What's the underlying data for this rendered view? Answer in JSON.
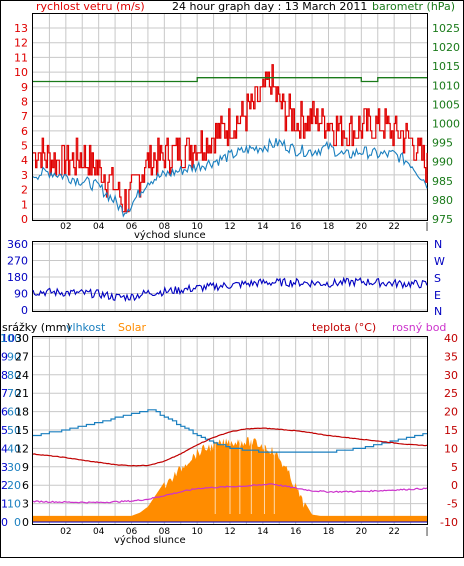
{
  "panel1": {
    "title": "24 hour graph day : 13 March 2011",
    "left_label": "rychlost vetru (m/s)",
    "right_label": "barometr (hPa)",
    "sunrise_label": "východ slunce"
  },
  "panel2": {
    "compass": [
      "N",
      "W",
      "S",
      "E",
      "N"
    ]
  },
  "panel3": {
    "labels": {
      "rain": "srážky (mm)",
      "humidity": "vlhkost",
      "solar": "Solar",
      "temperature": "teplota (°C)",
      "dew": "rosný bod"
    },
    "sunrise_label": "východ slunce"
  },
  "colors": {
    "wind": "#e00000",
    "gust_line": "#1a7fbf",
    "barometer": "#1a7a1a",
    "direction": "#0000c0",
    "humidity": "#1a7fbf",
    "solar": "#ff8c00",
    "temperature": "#c00000",
    "dew": "#cc33cc",
    "rain": "#0000cc",
    "frame": "#000000",
    "grid": "#c8c8c8"
  },
  "chart_data": [
    {
      "type": "line",
      "title": "24 hour graph day : 13 March 2011",
      "x_ticks": [
        "02",
        "04",
        "06",
        "08",
        "10",
        "12",
        "14",
        "16",
        "18",
        "20",
        "22"
      ],
      "y_left": {
        "label": "rychlost vetru (m/s)",
        "ylim": [
          0,
          13
        ],
        "ticks": [
          0,
          1,
          2,
          3,
          4,
          5,
          6,
          7,
          8,
          9,
          10,
          11,
          12,
          13
        ]
      },
      "y_right": {
        "label": "barometr (hPa)",
        "ylim": [
          975,
          1025
        ],
        "ticks": [
          975,
          980,
          985,
          990,
          995,
          1000,
          1005,
          1010,
          1015,
          1020,
          1025
        ]
      },
      "series": [
        {
          "name": "rychlost vetru (m/s)",
          "axis": "left",
          "x": [
            0,
            1,
            2,
            3,
            4,
            5,
            5.5,
            6,
            6.5,
            7,
            8,
            9,
            10,
            11,
            12,
            13,
            14,
            14.5,
            15,
            16,
            17,
            18,
            19,
            20,
            21,
            22,
            23,
            24
          ],
          "values": [
            4.6,
            4.2,
            3.9,
            4.2,
            3.4,
            2.2,
            1.0,
            1.6,
            3.0,
            4.0,
            4.3,
            4.7,
            5.0,
            5.6,
            6.4,
            7.2,
            8.5,
            9.5,
            7.8,
            6.6,
            6.9,
            6.6,
            6.0,
            6.2,
            6.5,
            5.9,
            5.4,
            3.6
          ]
        },
        {
          "axis": "left",
          "x": [
            0,
            1,
            2,
            3,
            4,
            5,
            5.5,
            6,
            6.5,
            7,
            8,
            9,
            10,
            11,
            12,
            13,
            14,
            15,
            16,
            17,
            18,
            19,
            20,
            21,
            22,
            23,
            24
          ],
          "values": [
            3.0,
            3.2,
            2.9,
            2.6,
            2.2,
            1.2,
            0.5,
            1.0,
            1.8,
            2.6,
            3.0,
            3.3,
            3.6,
            3.9,
            4.3,
            4.7,
            4.9,
            5.2,
            4.7,
            4.6,
            4.9,
            4.3,
            4.6,
            4.4,
            4.4,
            3.8,
            2.4
          ]
        },
        {
          "name": "barometr (hPa)",
          "axis": "right",
          "x": [
            0,
            2,
            4,
            6,
            8,
            9,
            10,
            12,
            14,
            16,
            18,
            19,
            20,
            21,
            22,
            24
          ],
          "values": [
            1011,
            1011,
            1011,
            1011,
            1011,
            1011,
            1012,
            1012,
            1012,
            1012,
            1012,
            1012,
            1011,
            1012,
            1012,
            1012
          ]
        }
      ]
    },
    {
      "type": "line",
      "y_left": {
        "ylim": [
          0,
          360
        ],
        "ticks": [
          0,
          90,
          180,
          270,
          360
        ]
      },
      "y_right": {
        "labels": [
          "N",
          "W",
          "S",
          "E",
          "N"
        ]
      },
      "series": [
        {
          "axis": "left",
          "x": [
            0,
            2,
            4,
            5,
            6,
            7,
            8,
            10,
            12,
            14,
            16,
            18,
            20,
            22,
            24
          ],
          "values": [
            100,
            95,
            88,
            70,
            72,
            95,
            100,
            120,
            135,
            150,
            150,
            145,
            155,
            145,
            140
          ]
        }
      ]
    },
    {
      "type": "area",
      "labels": [
        "srážky (mm)",
        "vlhkost",
        "Solar",
        "teplota (°C)",
        "rosný bod"
      ],
      "y_axes": {
        "rain": {
          "ylim": [
            0,
            10
          ],
          "ticks": [
            0,
            1,
            2,
            3,
            4,
            5,
            6,
            7,
            8,
            9,
            10
          ]
        },
        "humidity": {
          "ylim": [
            0,
            100
          ],
          "ticks": [
            0,
            10,
            20,
            30,
            40,
            50,
            60,
            70,
            80,
            90,
            100
          ]
        },
        "solar": {
          "ylim": [
            0,
            30
          ],
          "ticks": [
            0,
            3,
            6,
            9,
            12,
            15,
            18,
            21,
            24,
            27,
            30
          ]
        },
        "temperature": {
          "ylim": [
            -10,
            40
          ],
          "ticks": [
            -10,
            -5,
            0,
            5,
            10,
            15,
            20,
            25,
            30,
            35,
            40
          ]
        }
      },
      "series": [
        {
          "name": "vlhkost",
          "axis": "humidity",
          "x": [
            0,
            2,
            4,
            6,
            7.2,
            8,
            9,
            10,
            11,
            12,
            13,
            14,
            15,
            16,
            17,
            18,
            19,
            20,
            21,
            22,
            23,
            24
          ],
          "values": [
            47,
            50,
            54,
            59,
            61,
            57,
            52,
            47,
            43,
            40,
            39,
            38,
            38,
            38,
            38,
            38,
            39,
            40,
            42,
            44,
            46,
            48
          ]
        },
        {
          "name": "teplota (°C)",
          "axis": "temperature",
          "x": [
            0,
            1,
            2,
            3,
            4,
            5,
            6,
            7,
            8,
            9,
            10,
            11,
            12,
            13,
            14,
            15,
            16,
            17,
            18,
            19,
            20,
            21,
            22,
            23,
            24
          ],
          "values": [
            8.5,
            8,
            7.5,
            6.8,
            6.2,
            5.6,
            5.3,
            5.4,
            6.5,
            8.5,
            11,
            13,
            14.5,
            15.3,
            15.5,
            15.2,
            14.8,
            14.2,
            13.5,
            13,
            12.5,
            12,
            11.5,
            11,
            10.8
          ]
        },
        {
          "name": "rosný bod",
          "axis": "temperature",
          "x": [
            0,
            2,
            4,
            6,
            7,
            8,
            9,
            10,
            11,
            12,
            13,
            14,
            14.5,
            15,
            16,
            17,
            18,
            20,
            22,
            24
          ],
          "values": [
            -4.4,
            -4.6,
            -4.7,
            -4.3,
            -3.8,
            -2.8,
            -1.8,
            -0.9,
            -0.6,
            -0.4,
            -0.2,
            0.1,
            0.4,
            0.0,
            -0.8,
            -1.5,
            -1.8,
            -1.7,
            -1.3,
            -0.9
          ]
        },
        {
          "name": "Solar",
          "axis": "solar",
          "x": [
            0,
            6,
            6.5,
            7,
            7.5,
            8,
            8.5,
            9,
            9.5,
            10,
            10.5,
            11,
            11.5,
            12,
            12.5,
            13,
            13.5,
            14,
            14.5,
            15,
            15.5,
            16,
            16.5,
            17,
            17.5,
            18,
            24
          ],
          "values": [
            1,
            1,
            1.5,
            2.5,
            4.5,
            6.5,
            8,
            9.5,
            11,
            12,
            12.8,
            13.2,
            13.6,
            13.8,
            13.9,
            13.9,
            13.7,
            13.2,
            12.6,
            11.2,
            9,
            6.5,
            3.5,
            1.2,
            1,
            1,
            1
          ]
        },
        {
          "name": "srážky (mm)",
          "axis": "rain",
          "x": [
            0,
            24
          ],
          "values": [
            0,
            0
          ]
        }
      ]
    }
  ]
}
